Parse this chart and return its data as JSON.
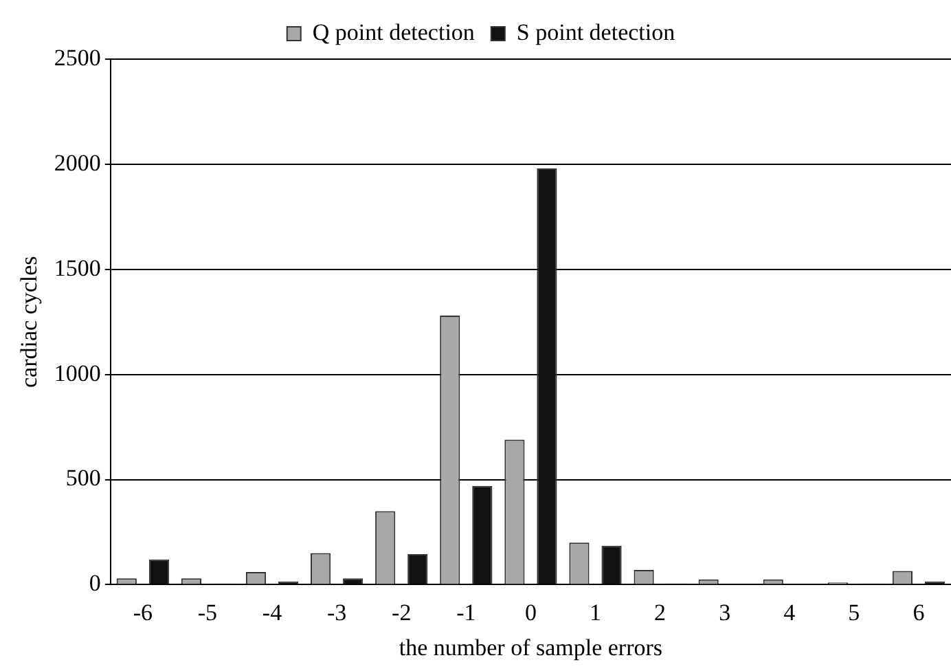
{
  "chart_data": {
    "type": "bar",
    "xlabel": "the number of sample errors",
    "ylabel": "cardiac cycles",
    "categories": [
      "-6",
      "-5",
      "-4",
      "-3",
      "-2",
      "-1",
      "0",
      "1",
      "2",
      "3",
      "4",
      "5",
      "6"
    ],
    "series": [
      {
        "name": "Q point detection",
        "color": "#a8a8a8",
        "values": [
          30,
          30,
          60,
          150,
          350,
          1280,
          690,
          200,
          70,
          25,
          25,
          10,
          65
        ]
      },
      {
        "name": "S point detection",
        "color": "#111111",
        "values": [
          120,
          5,
          15,
          30,
          145,
          470,
          1980,
          185,
          5,
          3,
          3,
          5,
          15
        ]
      }
    ],
    "ylim": [
      0,
      2500
    ],
    "yticks": [
      0,
      500,
      1000,
      1500,
      2000,
      2500
    ],
    "grid": "y",
    "legend": "top"
  }
}
